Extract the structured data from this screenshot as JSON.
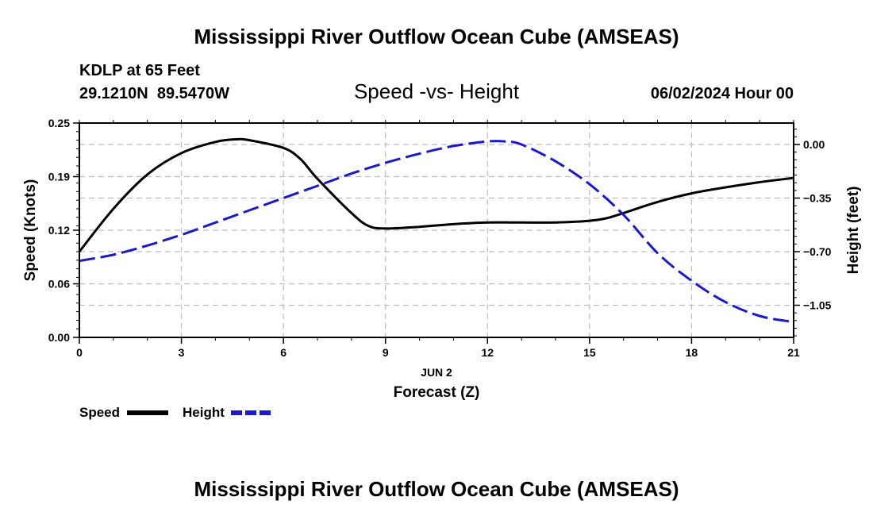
{
  "header": {
    "title": "Mississippi River Outflow Ocean Cube (AMSEAS)",
    "station": "KDLP at 65 Feet",
    "coords": "29.1210N  89.5470W",
    "date": "06/02/2024 Hour 00",
    "footer_title": "Mississippi River Outflow Ocean Cube (AMSEAS)"
  },
  "chart_data": {
    "type": "line",
    "title": "Speed -vs- Height",
    "xlabel": "Forecast (Z)",
    "xdate_label": "JUN 2",
    "ylabel": "Speed (Knots)",
    "y2label": "Height (feet)",
    "xlim": [
      0,
      21
    ],
    "ylim": [
      0,
      0.25
    ],
    "y2lim": [
      -1.26,
      0.14
    ],
    "x_ticks": [
      0,
      3,
      6,
      9,
      12,
      15,
      18,
      21
    ],
    "y_ticks": [
      "0.00",
      "0.06",
      "0.12",
      "0.19",
      "0.25"
    ],
    "y_tick_values": [
      0,
      0.0625,
      0.125,
      0.1875,
      0.25
    ],
    "y2_ticks": [
      "0.00",
      "−0.35",
      "−0.70",
      "−1.05"
    ],
    "y2_tick_values": [
      0,
      -0.35,
      -0.7,
      -1.05
    ],
    "grid": true,
    "colors": {
      "speed": "#000000",
      "height": "#1a1acc",
      "grid": "#bdbdbd"
    },
    "legend": {
      "speed_label": "Speed",
      "height_label": "Height"
    },
    "series": [
      {
        "name": "Speed",
        "axis": "left",
        "x": [
          0,
          1,
          2,
          3,
          4,
          4.6,
          5,
          6,
          6.5,
          7,
          8,
          8.5,
          9,
          10,
          11,
          12,
          13,
          14,
          15,
          15.5,
          16,
          17,
          18,
          19,
          20,
          21
        ],
        "values": [
          0.1,
          0.15,
          0.19,
          0.215,
          0.228,
          0.231,
          0.23,
          0.221,
          0.208,
          0.185,
          0.145,
          0.13,
          0.127,
          0.129,
          0.132,
          0.134,
          0.134,
          0.134,
          0.136,
          0.139,
          0.145,
          0.158,
          0.168,
          0.175,
          0.181,
          0.186
        ]
      },
      {
        "name": "Height",
        "axis": "right",
        "x": [
          0,
          1,
          2,
          3,
          4,
          5,
          6,
          7,
          8,
          9,
          10,
          11,
          12,
          12.5,
          13,
          14,
          15,
          16,
          17,
          18,
          19,
          20,
          21
        ],
        "values": [
          -0.76,
          -0.72,
          -0.66,
          -0.59,
          -0.51,
          -0.43,
          -0.35,
          -0.27,
          -0.19,
          -0.12,
          -0.06,
          -0.01,
          0.02,
          0.02,
          0.0,
          -0.11,
          -0.26,
          -0.46,
          -0.71,
          -0.89,
          -1.03,
          -1.12,
          -1.16
        ]
      }
    ]
  }
}
